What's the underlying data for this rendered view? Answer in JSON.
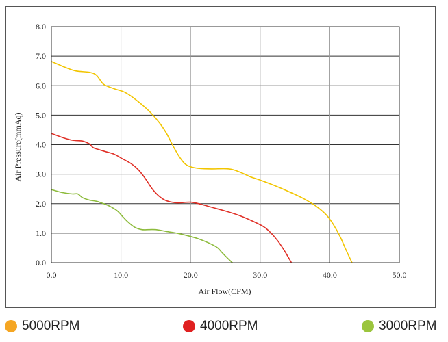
{
  "chart_data": {
    "type": "line",
    "title": "",
    "xlabel": "Air Flow(CFM)",
    "ylabel": "Air Pressure(mmAq)",
    "xlim": [
      0,
      50
    ],
    "ylim": [
      0,
      8
    ],
    "x_ticks": [
      "0.0",
      "10.0",
      "20.0",
      "30.0",
      "40.0",
      "50.0"
    ],
    "y_ticks": [
      "0.0",
      "1.0",
      "2.0",
      "3.0",
      "4.0",
      "5.0",
      "6.0",
      "7.0",
      "8.0"
    ],
    "grid": true,
    "legend_position": "bottom",
    "series": [
      {
        "name": "5000RPM",
        "color": "#f2c500",
        "legend_color": "#f5a623",
        "points": [
          [
            0,
            6.82
          ],
          [
            2,
            6.62
          ],
          [
            3.5,
            6.5
          ],
          [
            5.5,
            6.45
          ],
          [
            6.5,
            6.35
          ],
          [
            7.5,
            6.05
          ],
          [
            9,
            5.9
          ],
          [
            10.5,
            5.78
          ],
          [
            12,
            5.55
          ],
          [
            14,
            5.15
          ],
          [
            15.5,
            4.75
          ],
          [
            16.5,
            4.4
          ],
          [
            17.5,
            3.95
          ],
          [
            18.5,
            3.55
          ],
          [
            19.5,
            3.3
          ],
          [
            21,
            3.2
          ],
          [
            23,
            3.18
          ],
          [
            25.5,
            3.18
          ],
          [
            27,
            3.08
          ],
          [
            28.5,
            2.92
          ],
          [
            30,
            2.8
          ],
          [
            32,
            2.62
          ],
          [
            34,
            2.42
          ],
          [
            36,
            2.2
          ],
          [
            38,
            1.92
          ],
          [
            39.5,
            1.62
          ],
          [
            40.5,
            1.3
          ],
          [
            41.5,
            0.88
          ],
          [
            42.3,
            0.45
          ],
          [
            43.2,
            0
          ]
        ]
      },
      {
        "name": "4000RPM",
        "color": "#e03027",
        "legend_color": "#e02020",
        "points": [
          [
            0,
            4.38
          ],
          [
            1.5,
            4.25
          ],
          [
            3,
            4.15
          ],
          [
            4.5,
            4.12
          ],
          [
            5.5,
            4.02
          ],
          [
            6,
            3.9
          ],
          [
            7,
            3.82
          ],
          [
            8,
            3.75
          ],
          [
            9,
            3.68
          ],
          [
            10,
            3.55
          ],
          [
            11.5,
            3.35
          ],
          [
            12.5,
            3.15
          ],
          [
            13.5,
            2.85
          ],
          [
            14.5,
            2.5
          ],
          [
            15.5,
            2.25
          ],
          [
            16.5,
            2.1
          ],
          [
            18,
            2.03
          ],
          [
            20,
            2.05
          ],
          [
            21.5,
            1.98
          ],
          [
            23,
            1.88
          ],
          [
            25,
            1.75
          ],
          [
            27,
            1.6
          ],
          [
            29,
            1.4
          ],
          [
            30.5,
            1.22
          ],
          [
            31.5,
            1.02
          ],
          [
            32.5,
            0.75
          ],
          [
            33.5,
            0.4
          ],
          [
            34.5,
            0
          ]
        ]
      },
      {
        "name": "3000RPM",
        "color": "#8dbb3c",
        "legend_color": "#9bc53d",
        "points": [
          [
            0,
            2.48
          ],
          [
            1.5,
            2.38
          ],
          [
            3,
            2.33
          ],
          [
            3.8,
            2.33
          ],
          [
            4.5,
            2.2
          ],
          [
            5.5,
            2.12
          ],
          [
            6.5,
            2.08
          ],
          [
            7.5,
            2.0
          ],
          [
            8.5,
            1.9
          ],
          [
            9.5,
            1.75
          ],
          [
            10.3,
            1.55
          ],
          [
            11,
            1.38
          ],
          [
            12,
            1.2
          ],
          [
            13,
            1.12
          ],
          [
            14,
            1.12
          ],
          [
            15,
            1.12
          ],
          [
            16.5,
            1.06
          ],
          [
            18,
            1.0
          ],
          [
            19.5,
            0.92
          ],
          [
            21,
            0.82
          ],
          [
            22.5,
            0.68
          ],
          [
            23.8,
            0.52
          ],
          [
            24.5,
            0.35
          ],
          [
            25.2,
            0.18
          ],
          [
            26,
            0
          ]
        ]
      }
    ]
  }
}
